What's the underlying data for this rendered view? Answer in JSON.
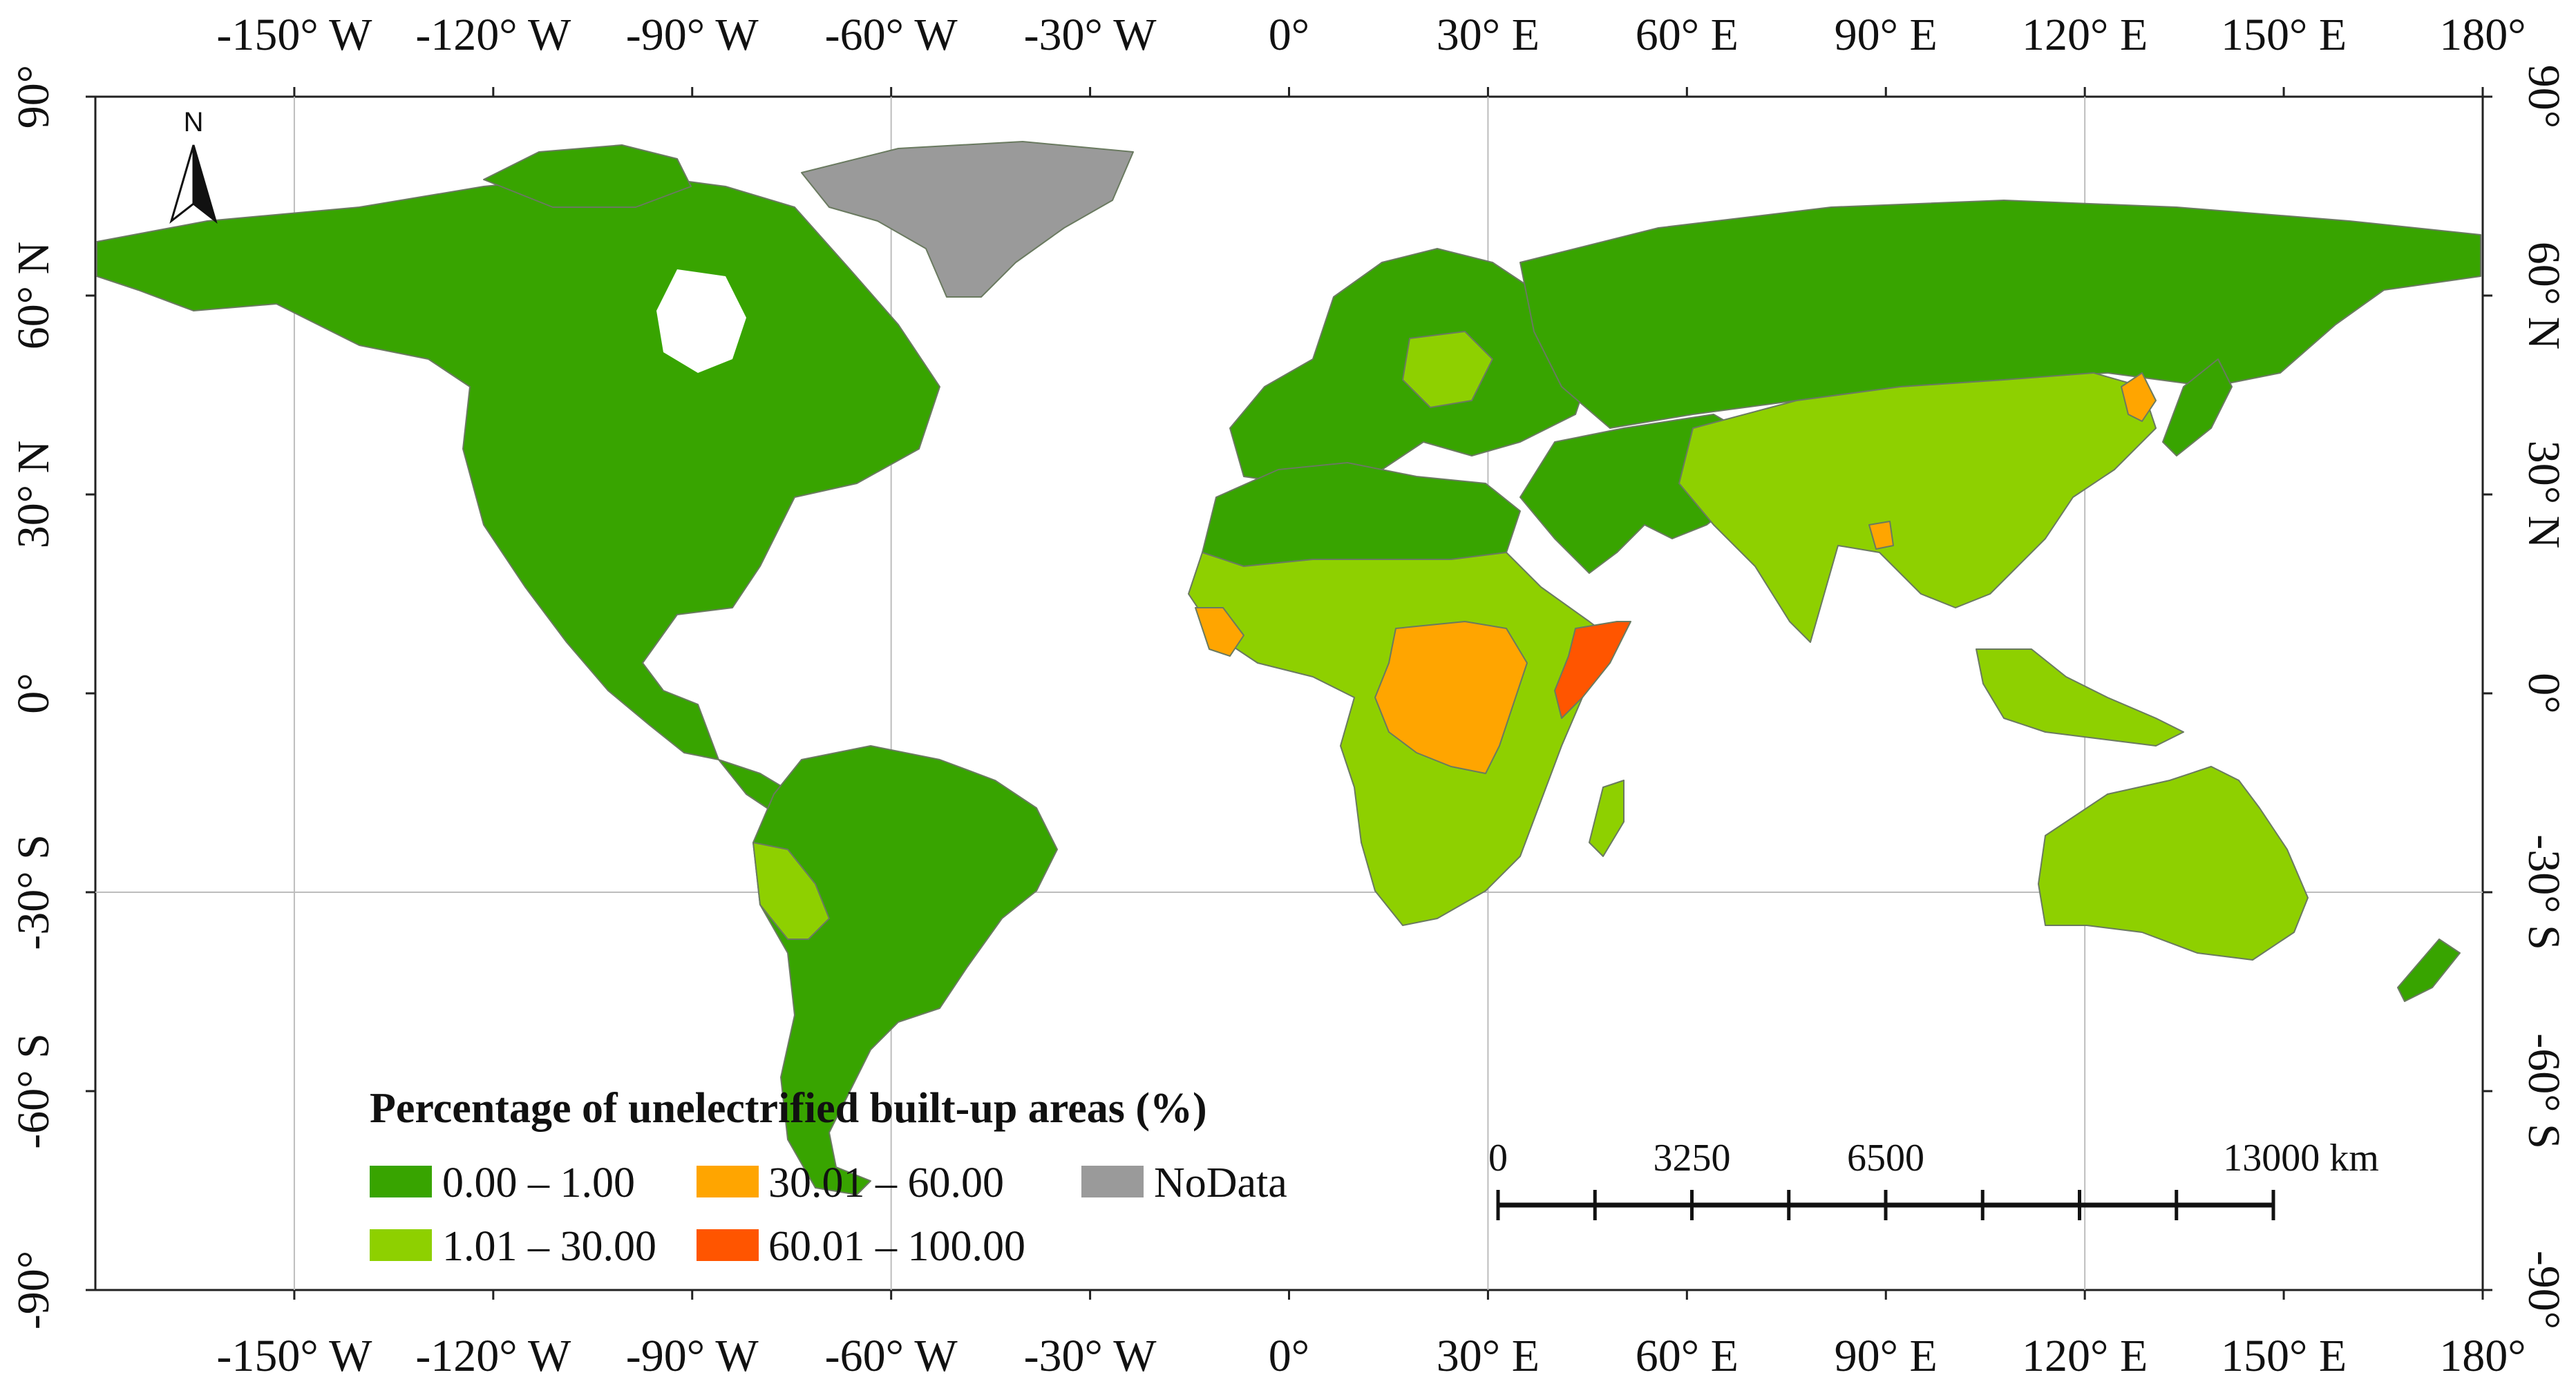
{
  "map": {
    "legend": {
      "title": "Percentage of unelectrified built-up areas (%)",
      "items": [
        {
          "label": "0.00 – 1.00",
          "color": "#38a400"
        },
        {
          "label": "1.01 – 30.00",
          "color": "#8ed000"
        },
        {
          "label": "30.01 – 60.00",
          "color": "#ffa500"
        },
        {
          "label": "60.01 – 100.00",
          "color": "#ff5500"
        },
        {
          "label": "NoData",
          "color": "#9a9a9a"
        }
      ]
    },
    "axes": {
      "longitude_labels": [
        "-150° W",
        "-120° W",
        "-90° W",
        "-60° W",
        "-30° W",
        "0°",
        "30° E",
        "60° E",
        "90° E",
        "120° E",
        "150° E",
        "180°"
      ],
      "longitude_values": [
        -150,
        -120,
        -90,
        -60,
        -30,
        0,
        30,
        60,
        90,
        120,
        150,
        180
      ],
      "latitude_labels": [
        "90°",
        "60° N",
        "30° N",
        "0°",
        "-30° S",
        "-60° S",
        "-90°"
      ],
      "latitude_values": [
        90,
        60,
        30,
        0,
        -30,
        -60,
        -90
      ],
      "grid_longitudes": [
        -150,
        -60,
        30,
        120
      ],
      "grid_latitudes": [
        -30
      ]
    },
    "north_arrow": {
      "label": "N",
      "icon": "north-arrow-icon"
    },
    "scale_bar": {
      "labels": [
        "0",
        "3250",
        "6500",
        "13000 km"
      ],
      "values_km": [
        0,
        3250,
        6500,
        13000
      ],
      "segments": 8
    }
  }
}
